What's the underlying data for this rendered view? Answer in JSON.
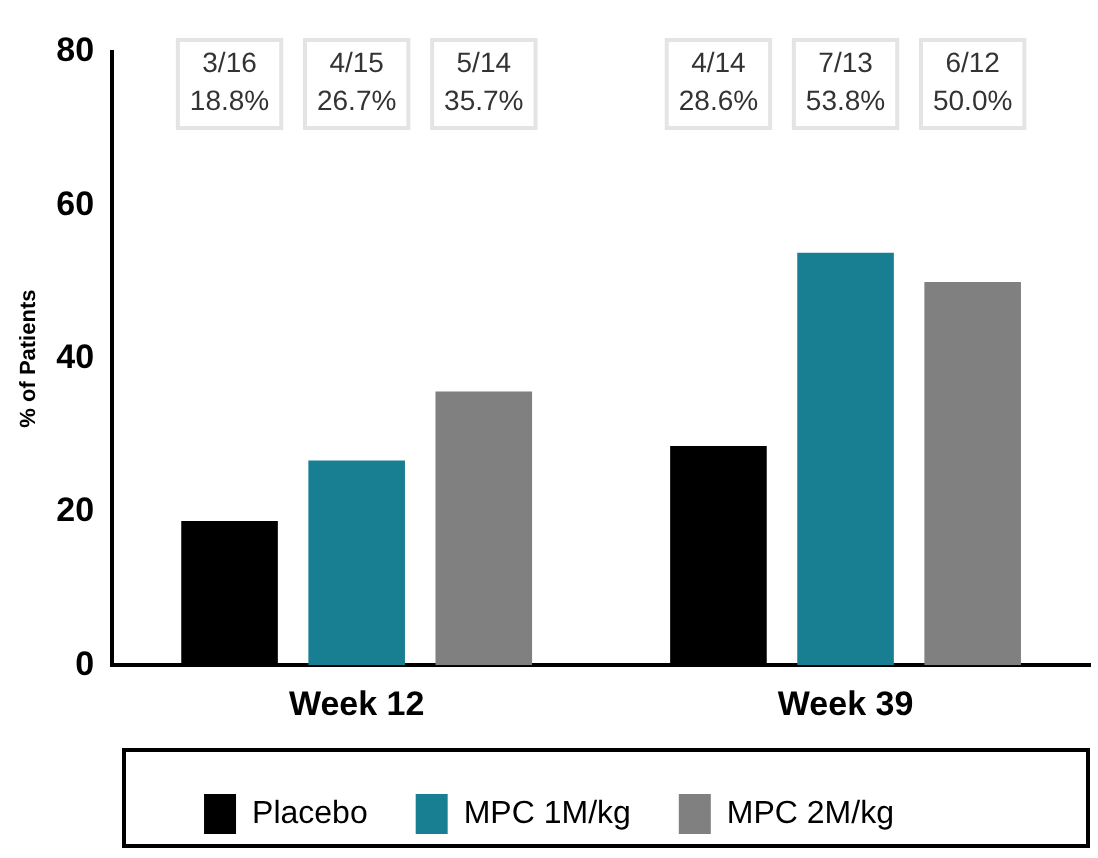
{
  "chart_data": {
    "type": "bar",
    "ylabel": "% of Patients",
    "categories": [
      "Week 12",
      "Week 39"
    ],
    "series": [
      {
        "name": "Placebo",
        "color": "#000000",
        "values": [
          18.8,
          28.6
        ]
      },
      {
        "name": "MPC 1M/kg",
        "color": "#187f93",
        "values": [
          26.7,
          53.8
        ]
      },
      {
        "name": "MPC 2M/kg",
        "color": "#808080",
        "values": [
          35.7,
          50.0
        ]
      }
    ],
    "annotations": [
      "3/16\n18.8%",
      "4/15\n26.7%",
      "5/14\n35.7%",
      "4/14\n28.6%",
      "7/13\n53.8%",
      "6/12\n50.0%"
    ],
    "ylim": [
      0,
      80
    ],
    "yticks": [
      0,
      20,
      40,
      60,
      80
    ],
    "grid": false,
    "legend": "bottom"
  }
}
